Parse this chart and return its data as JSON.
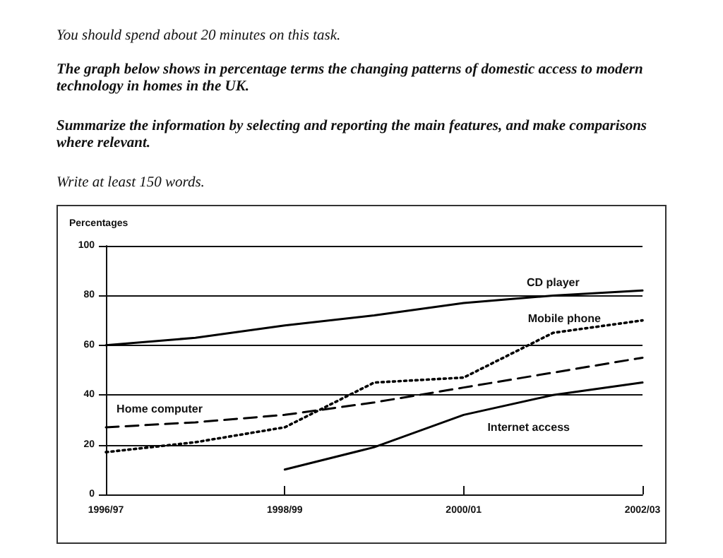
{
  "chart_data": {
    "type": "line",
    "title": "The graph below shows in percentage terms the changing patterns of domestic access to modern technology in homes in the UK.",
    "annotations": [
      "You should spend about 20 minutes on this task.",
      "Summarize the information by selecting and reporting the main features, and make comparisons where relevant.",
      "Write at least 150 words."
    ],
    "ylabel": "Percentages",
    "categories": [
      "1996/97",
      null,
      "1998/99",
      null,
      "2000/01",
      null,
      "2002/03"
    ],
    "ylim": [
      0,
      100
    ],
    "yticks": [
      0,
      20,
      40,
      60,
      80,
      100
    ],
    "grid": "y",
    "legend": false,
    "marker": "none",
    "series": [
      {
        "name": "CD player",
        "color": "#000000",
        "line_style": "solid",
        "values": [
          60,
          63,
          68,
          72,
          77,
          80,
          82
        ]
      },
      {
        "name": "Mobile phone",
        "color": "#000000",
        "line_style": "dotted",
        "values": [
          17,
          21,
          27,
          45,
          47,
          65,
          70
        ]
      },
      {
        "name": "Home computer",
        "color": "#000000",
        "line_style": "dashed",
        "values": [
          27,
          29,
          32,
          37,
          43,
          49,
          55
        ]
      },
      {
        "name": "Internet access",
        "color": "#000000",
        "line_style": "solid",
        "values": [
          null,
          null,
          10,
          19,
          32,
          40,
          45
        ]
      }
    ]
  }
}
